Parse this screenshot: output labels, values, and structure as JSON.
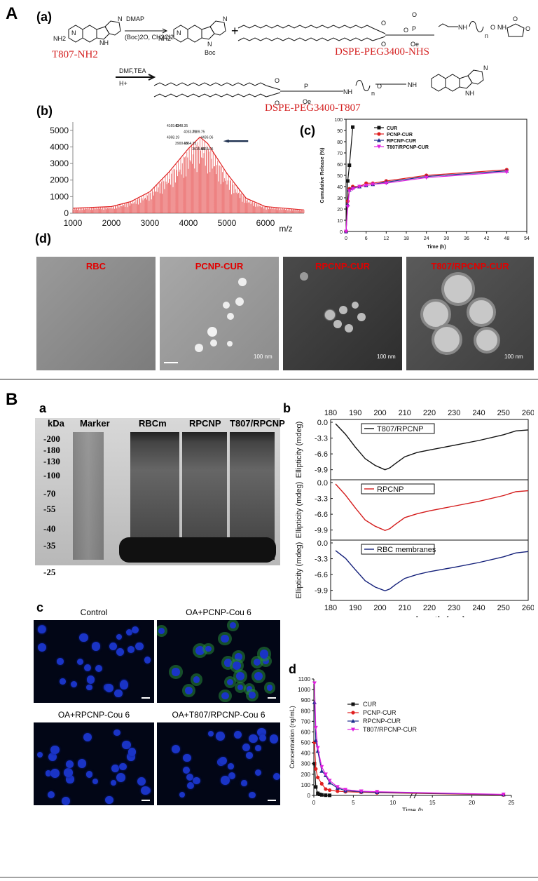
{
  "panels": {
    "A": "A",
    "B": "B"
  },
  "schemeA": {
    "label": "(a)",
    "reagents1": [
      "DMAP",
      "(Boc)2O, CH2Cl2"
    ],
    "plus": "+",
    "reagents2": [
      "DMF,TEA",
      "H+"
    ],
    "t807_label": "T807-NH2",
    "dspe_nhs_label": "DSPE-PEG3400-NHS",
    "product_label": "DSPE-PEG3400-T807",
    "struct": {
      "nh2": "NH2",
      "n1": "N",
      "nh1": "NH",
      "n2": "N",
      "n3": "N",
      "boc": "Boc",
      "nh3": "NH",
      "n4": "N",
      "o1": "O",
      "o2": "O",
      "o3": "O",
      "o4": "O",
      "p1": "P",
      "oe1": "Oe",
      "nh4": "NH",
      "n_1": "n",
      "o5": "O",
      "nh5": "NH",
      "o6": "O",
      "o7": "O",
      "o8": "O",
      "o9": "O",
      "p2": "P",
      "oe2": "Oe",
      "nh6": "NH",
      "n_2": "n",
      "o10": "O",
      "nh7": "NH",
      "n5": "N",
      "nh8": "NH"
    }
  },
  "chart_data": [
    {
      "id": "A-b",
      "type": "line",
      "label": "(b)",
      "title": "",
      "xlabel": "m/z",
      "ylabel": "",
      "xlim": [
        1000,
        7000
      ],
      "ylim": [
        0,
        5500
      ],
      "xticks": [
        1000,
        2000,
        3000,
        4000,
        5000,
        6000
      ],
      "yticks": [
        0,
        1000,
        2000,
        3000,
        4000,
        5000
      ],
      "series": [
        {
          "x": [
            1000,
            2000,
            2500,
            3000,
            3500,
            4000,
            4300,
            4500,
            5000,
            5500,
            6000,
            7000
          ],
          "y": [
            300,
            400,
            700,
            1300,
            2500,
            3900,
            4600,
            4200,
            2400,
            900,
            400,
            200
          ],
          "color": "#e02020"
        }
      ],
      "peak_labels": [
        "4169.33",
        "4348.35",
        "4033.71",
        "3989.75",
        "4436.06",
        "4368.19",
        "3900.18",
        "4664.35",
        "3615.66",
        "4866.05"
      ]
    },
    {
      "id": "A-c",
      "type": "line",
      "label": "(c)",
      "title": "",
      "xlabel": "Time (h)",
      "ylabel": "Cumulative Release (%)",
      "xlim": [
        0,
        54
      ],
      "ylim": [
        0,
        100
      ],
      "xticks": [
        0,
        6,
        12,
        18,
        24,
        30,
        36,
        42,
        48,
        54
      ],
      "yticks": [
        0,
        10,
        20,
        30,
        40,
        50,
        60,
        70,
        80,
        90,
        100
      ],
      "series": [
        {
          "name": "CUR",
          "color": "#111111",
          "marker": "square",
          "x": [
            0,
            0.5,
            1,
            2
          ],
          "y": [
            0,
            45,
            59,
            93
          ]
        },
        {
          "name": "PCNP-CUR",
          "color": "#e02020",
          "marker": "circle",
          "x": [
            0,
            0.5,
            1,
            2,
            4,
            6,
            8,
            12,
            24,
            48
          ],
          "y": [
            0,
            27,
            38,
            40,
            40,
            43,
            43,
            45,
            50,
            55
          ]
        },
        {
          "name": "RPCNP-CUR",
          "color": "#1c2d8c",
          "marker": "triangle",
          "x": [
            0,
            0.5,
            1,
            2,
            4,
            6,
            8,
            12,
            24,
            48
          ],
          "y": [
            0,
            24,
            37,
            39,
            40,
            41,
            42,
            44,
            49,
            54
          ]
        },
        {
          "name": "T807/RPCNP-CUR",
          "color": "#e020e0",
          "marker": "triangle-down",
          "x": [
            0,
            0.5,
            1,
            2,
            4,
            6,
            8,
            12,
            24,
            48
          ],
          "y": [
            0,
            22,
            36,
            38,
            40,
            41,
            42,
            43,
            48,
            53
          ]
        }
      ]
    },
    {
      "id": "B-b",
      "type": "line",
      "label": "b",
      "title": "",
      "xlabel": "wavelength (nm)",
      "ylabel": "Ellipticity (mdeg)",
      "xlim": [
        180,
        260
      ],
      "xticks": [
        180,
        190,
        200,
        210,
        220,
        230,
        240,
        250,
        260
      ],
      "ylim": [
        -12,
        0
      ],
      "yticks": [
        0.0,
        -3.3,
        -6.6,
        -9.9
      ],
      "series": [
        {
          "name": "T807/RPCNP",
          "color": "#111111",
          "x": [
            182,
            186,
            190,
            194,
            198,
            202,
            204,
            206,
            210,
            215,
            220,
            230,
            240,
            250,
            255,
            260
          ],
          "y": [
            -0.3,
            -2.5,
            -5.2,
            -7.6,
            -9.0,
            -9.9,
            -9.5,
            -8.7,
            -7.2,
            -6.3,
            -5.8,
            -4.8,
            -3.8,
            -2.6,
            -1.8,
            -1.6
          ]
        },
        {
          "name": "RPCNP",
          "color": "#d41c1c",
          "x": [
            182,
            186,
            190,
            194,
            198,
            202,
            204,
            206,
            210,
            215,
            220,
            230,
            240,
            250,
            255,
            260
          ],
          "y": [
            -0.3,
            -2.6,
            -5.3,
            -7.8,
            -9.1,
            -10.0,
            -9.6,
            -8.8,
            -7.3,
            -6.5,
            -5.9,
            -4.9,
            -3.9,
            -2.7,
            -1.9,
            -1.7
          ]
        },
        {
          "name": "RBC membranes",
          "color": "#14207a",
          "x": [
            182,
            186,
            190,
            194,
            198,
            202,
            204,
            206,
            210,
            215,
            220,
            230,
            240,
            250,
            255,
            260
          ],
          "y": [
            -1.6,
            -3.2,
            -5.6,
            -7.9,
            -9.2,
            -10.0,
            -9.6,
            -8.8,
            -7.4,
            -6.6,
            -6.0,
            -5.1,
            -4.1,
            -2.9,
            -2.1,
            -1.8
          ]
        }
      ]
    },
    {
      "id": "B-d",
      "type": "line",
      "label": "d",
      "title": "",
      "xlabel": "Time /h",
      "ylabel": "Concentration (ng/mL)",
      "xlim": [
        0,
        25
      ],
      "xticks": [
        0,
        5,
        10,
        15,
        20,
        25
      ],
      "ylim": [
        0,
        1100
      ],
      "yticks": [
        0,
        100,
        200,
        300,
        400,
        500,
        600,
        700,
        800,
        900,
        1000,
        1100
      ],
      "series": [
        {
          "name": "CUR",
          "color": "#111111",
          "marker": "square",
          "x": [
            0.08,
            0.25,
            0.5,
            0.75,
            1,
            1.5,
            2
          ],
          "y": [
            300,
            80,
            20,
            10,
            5,
            2,
            1
          ]
        },
        {
          "name": "PCNP-CUR",
          "color": "#e02020",
          "marker": "circle",
          "x": [
            0.08,
            0.25,
            0.5,
            1,
            1.5,
            2,
            3,
            4,
            6,
            8,
            24
          ],
          "y": [
            500,
            250,
            170,
            110,
            60,
            50,
            40,
            35,
            30,
            25,
            5
          ]
        },
        {
          "name": "RPCNP-CUR",
          "color": "#1c2d8c",
          "marker": "triangle",
          "x": [
            0.08,
            0.25,
            0.5,
            1,
            1.5,
            2,
            3,
            4,
            6,
            8,
            24
          ],
          "y": [
            880,
            520,
            420,
            230,
            190,
            120,
            70,
            45,
            35,
            30,
            8
          ]
        },
        {
          "name": "T807/RPCNP-CUR",
          "color": "#e020e0",
          "marker": "triangle-down",
          "x": [
            0.08,
            0.25,
            0.5,
            1,
            1.5,
            2,
            3,
            4,
            6,
            8,
            24
          ],
          "y": [
            1060,
            640,
            450,
            270,
            200,
            140,
            80,
            55,
            40,
            35,
            10
          ]
        }
      ]
    }
  ],
  "tem": {
    "label": "(d)",
    "panels": [
      {
        "name": "RBC",
        "scale": ""
      },
      {
        "name": "PCNP-CUR",
        "scale": "100 nm"
      },
      {
        "name": "RPCNP-CUR",
        "scale": "100 nm"
      },
      {
        "name": "T807/RPCNP-CUR",
        "scale": "100 nm"
      }
    ]
  },
  "gel": {
    "label": "a",
    "kda": "kDa",
    "marker": "Marker",
    "lanes": [
      "RBCm",
      "RPCNP",
      "T807/RPCNP"
    ],
    "mw": [
      "-200",
      "-180",
      "-130",
      "-100",
      "-70",
      "-55",
      "-40",
      "-35",
      "-25"
    ]
  },
  "confocal": {
    "label": "c",
    "panels": [
      "Control",
      "OA+PCNP-Cou 6",
      "OA+RPCNP-Cou 6",
      "OA+T807/RPCNP-Cou 6"
    ]
  }
}
